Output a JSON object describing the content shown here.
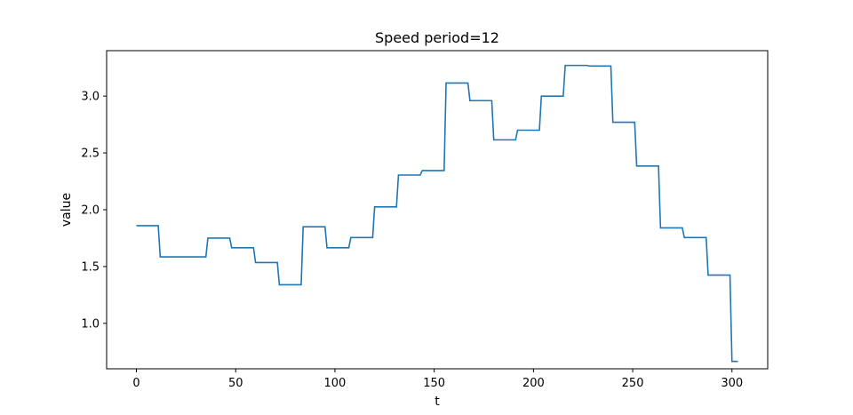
{
  "chart_data": {
    "type": "line",
    "title": "Speed period=12",
    "xlabel": "t",
    "ylabel": "value",
    "xlim": [
      -15,
      318
    ],
    "ylim": [
      0.6,
      3.4
    ],
    "xticks": [
      0,
      50,
      100,
      150,
      200,
      250,
      300
    ],
    "yticks": [
      1.0,
      1.5,
      2.0,
      2.5,
      3.0
    ],
    "ytick_labels": [
      "1.0",
      "1.5",
      "2.0",
      "2.5",
      "3.0"
    ],
    "grid": false,
    "legend": "none",
    "series": [
      {
        "color": "#1f77b4",
        "x": [
          0,
          11,
          12,
          23,
          24,
          35,
          36,
          47,
          48,
          59,
          60,
          71,
          72,
          83,
          84,
          95,
          96,
          107,
          108,
          119,
          120,
          131,
          132,
          143,
          144,
          155,
          156,
          167,
          168,
          179,
          180,
          191,
          192,
          203,
          204,
          215,
          216,
          227,
          228,
          239,
          240,
          251,
          252,
          263,
          264,
          275,
          276,
          287,
          288,
          299,
          300,
          303
        ],
        "y": [
          1.86,
          1.86,
          1.585,
          1.585,
          1.585,
          1.585,
          1.75,
          1.75,
          1.665,
          1.665,
          1.535,
          1.535,
          1.34,
          1.34,
          1.85,
          1.85,
          1.665,
          1.665,
          1.755,
          1.755,
          2.025,
          2.025,
          2.305,
          2.305,
          2.345,
          2.345,
          3.115,
          3.115,
          2.96,
          2.96,
          2.615,
          2.615,
          2.7,
          2.7,
          3.0,
          3.0,
          3.27,
          3.27,
          3.265,
          3.265,
          2.77,
          2.77,
          2.385,
          2.385,
          1.84,
          1.84,
          1.755,
          1.755,
          1.425,
          1.425,
          0.665,
          0.665
        ]
      }
    ]
  }
}
